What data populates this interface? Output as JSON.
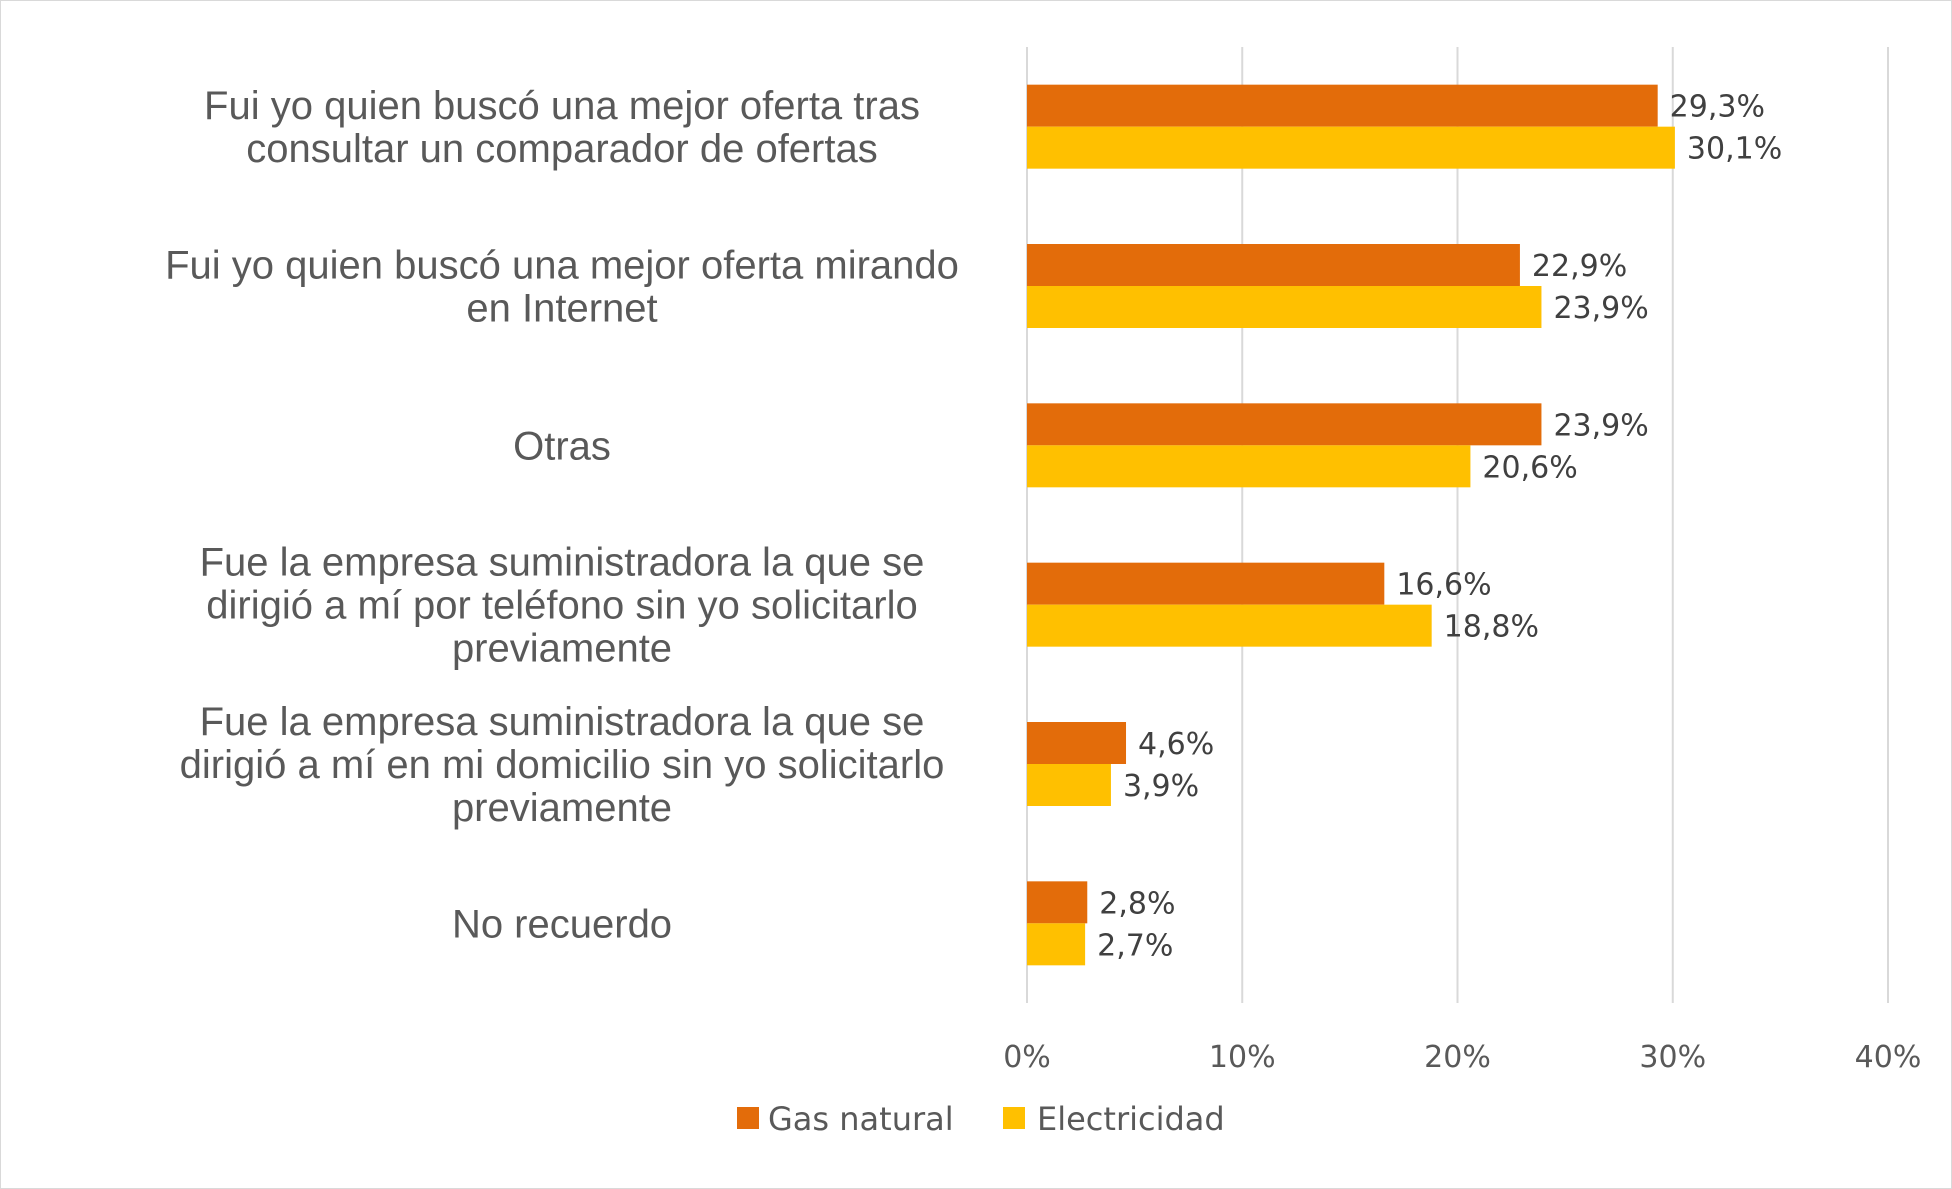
{
  "chart_data": {
    "type": "bar",
    "orientation": "horizontal",
    "categories": [
      [
        "Fui yo quien buscó una mejor oferta tras",
        "consultar un comparador de ofertas"
      ],
      [
        "Fui yo quien buscó una mejor oferta mirando",
        "en Internet"
      ],
      [
        "Otras"
      ],
      [
        "Fue la empresa suministradora la que se",
        "dirigió a mí por teléfono sin yo solicitarlo",
        "previamente"
      ],
      [
        "Fue la empresa suministradora la que se",
        "dirigió a mí en mi domicilio sin yo solicitarlo",
        "previamente"
      ],
      [
        "No recuerdo"
      ]
    ],
    "series": [
      {
        "name": "Gas natural",
        "color": "#E36C0A",
        "values": [
          29.3,
          22.9,
          23.9,
          16.6,
          4.6,
          2.8
        ],
        "labels": [
          "29,3%",
          "22,9%",
          "23,9%",
          "16,6%",
          "4,6%",
          "2,8%"
        ]
      },
      {
        "name": "Electricidad",
        "color": "#FFC000",
        "values": [
          30.1,
          23.9,
          20.6,
          18.8,
          3.9,
          2.7
        ],
        "labels": [
          "30,1%",
          "23,9%",
          "20,6%",
          "18,8%",
          "3,9%",
          "2,7%"
        ]
      }
    ],
    "xlim": [
      0,
      40
    ],
    "xticks": [
      0,
      10,
      20,
      30,
      40
    ],
    "xtick_labels": [
      "0%",
      "10%",
      "20%",
      "30%",
      "40%"
    ],
    "grid": true,
    "legend": "bottom"
  }
}
